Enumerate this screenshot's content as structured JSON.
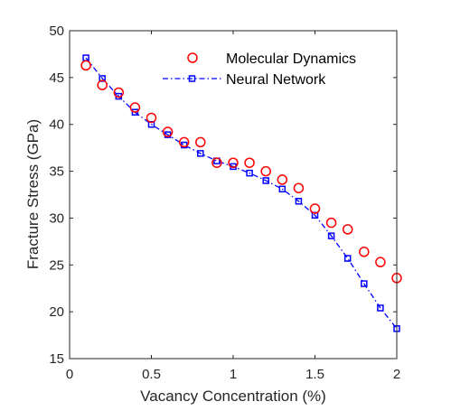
{
  "chart_data": {
    "type": "scatter",
    "title": "",
    "xlabel": "Vacancy Concentration (%)",
    "ylabel": "Fracture Stress (GPa)",
    "xlim": [
      0,
      2
    ],
    "ylim": [
      15,
      50
    ],
    "xticks": [
      0,
      0.5,
      1,
      1.5,
      2
    ],
    "xtick_labels": [
      "0",
      "0.5",
      "1",
      "1.5",
      "2"
    ],
    "yticks": [
      15,
      20,
      25,
      30,
      35,
      40,
      45,
      50
    ],
    "ytick_labels": [
      "15",
      "20",
      "25",
      "30",
      "35",
      "40",
      "45",
      "50"
    ],
    "grid": false,
    "legend_position": "top-right",
    "series": [
      {
        "name": "Molecular Dynamics",
        "style": "markers",
        "marker": "circle",
        "color": "#ff0000",
        "x": [
          0.1,
          0.2,
          0.3,
          0.4,
          0.5,
          0.6,
          0.7,
          0.8,
          0.9,
          1.0,
          1.1,
          1.2,
          1.3,
          1.4,
          1.5,
          1.6,
          1.7,
          1.8,
          1.9,
          2.0
        ],
        "y": [
          46.3,
          44.2,
          43.4,
          41.8,
          40.7,
          39.2,
          38.1,
          38.1,
          35.9,
          35.9,
          35.9,
          35.0,
          34.1,
          33.2,
          31.0,
          29.5,
          28.8,
          26.4,
          25.3,
          23.6
        ]
      },
      {
        "name": "Neural Network",
        "style": "dash-dot line with square markers",
        "marker": "square",
        "color": "#0000ff",
        "x": [
          0.1,
          0.2,
          0.3,
          0.4,
          0.5,
          0.6,
          0.7,
          0.8,
          0.9,
          1.0,
          1.1,
          1.2,
          1.3,
          1.4,
          1.5,
          1.6,
          1.7,
          1.8,
          1.9,
          2.0
        ],
        "y": [
          47.1,
          44.9,
          43.0,
          41.3,
          40.0,
          38.9,
          37.8,
          36.9,
          36.1,
          35.5,
          34.8,
          34.0,
          33.1,
          31.8,
          30.3,
          28.1,
          25.7,
          23.0,
          20.4,
          18.2
        ]
      }
    ]
  }
}
